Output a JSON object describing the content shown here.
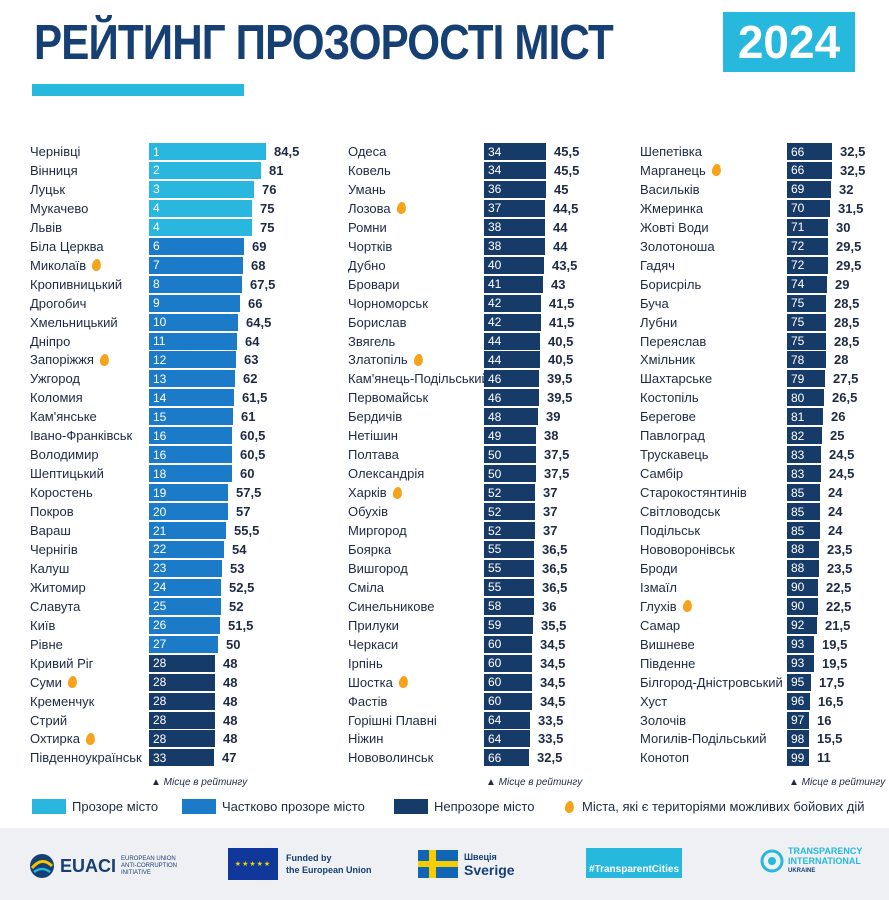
{
  "header": {
    "title": "РЕЙТИНГ ПРОЗОРОСТІ МІСТ",
    "year": "2024"
  },
  "colors": {
    "transparent": "#29b6df",
    "partial": "#1c7bc9",
    "opaque": "#173b68",
    "fire": "#f6a21a",
    "title": "#163f73"
  },
  "chart_data": {
    "type": "bar",
    "title": "РЕЙТИНГ ПРОЗОРОСТІ МІСТ 2024",
    "axis_note": "Місце в рейтингу",
    "categories": [
      "Прозоре місто",
      "Частково прозоре місто",
      "Непрозоре місто"
    ],
    "xlim": [
      0,
      100
    ],
    "rows": [
      {
        "city": "Чернівці",
        "rank": 1,
        "score": "84,5",
        "category": 0,
        "fire": false
      },
      {
        "city": "Вінниця",
        "rank": 2,
        "score": "81",
        "category": 0,
        "fire": false
      },
      {
        "city": "Луцьк",
        "rank": 3,
        "score": "76",
        "category": 0,
        "fire": false
      },
      {
        "city": "Мукачево",
        "rank": 4,
        "score": "75",
        "category": 0,
        "fire": false
      },
      {
        "city": "Львів",
        "rank": 4,
        "score": "75",
        "category": 0,
        "fire": false
      },
      {
        "city": "Біла Церква",
        "rank": 6,
        "score": "69",
        "category": 1,
        "fire": false
      },
      {
        "city": "Миколаїв",
        "rank": 7,
        "score": "68",
        "category": 1,
        "fire": true
      },
      {
        "city": "Кропивницький",
        "rank": 8,
        "score": "67,5",
        "category": 1,
        "fire": false
      },
      {
        "city": "Дрогобич",
        "rank": 9,
        "score": "66",
        "category": 1,
        "fire": false
      },
      {
        "city": "Хмельницький",
        "rank": 10,
        "score": "64,5",
        "category": 1,
        "fire": false
      },
      {
        "city": "Дніпро",
        "rank": 11,
        "score": "64",
        "category": 1,
        "fire": false
      },
      {
        "city": "Запоріжжя",
        "rank": 12,
        "score": "63",
        "category": 1,
        "fire": true
      },
      {
        "city": "Ужгород",
        "rank": 13,
        "score": "62",
        "category": 1,
        "fire": false
      },
      {
        "city": "Коломия",
        "rank": 14,
        "score": "61,5",
        "category": 1,
        "fire": false
      },
      {
        "city": "Кам'янське",
        "rank": 15,
        "score": "61",
        "category": 1,
        "fire": false
      },
      {
        "city": "Івано-Франківськ",
        "rank": 16,
        "score": "60,5",
        "category": 1,
        "fire": false
      },
      {
        "city": "Володимир",
        "rank": 16,
        "score": "60,5",
        "category": 1,
        "fire": false
      },
      {
        "city": "Шептицький",
        "rank": 18,
        "score": "60",
        "category": 1,
        "fire": false
      },
      {
        "city": "Коростень",
        "rank": 19,
        "score": "57,5",
        "category": 1,
        "fire": false
      },
      {
        "city": "Покров",
        "rank": 20,
        "score": "57",
        "category": 1,
        "fire": false
      },
      {
        "city": "Вараш",
        "rank": 21,
        "score": "55,5",
        "category": 1,
        "fire": false
      },
      {
        "city": "Чернігів",
        "rank": 22,
        "score": "54",
        "category": 1,
        "fire": false
      },
      {
        "city": "Калуш",
        "rank": 23,
        "score": "53",
        "category": 1,
        "fire": false
      },
      {
        "city": "Житомир",
        "rank": 24,
        "score": "52,5",
        "category": 1,
        "fire": false
      },
      {
        "city": "Славута",
        "rank": 25,
        "score": "52",
        "category": 1,
        "fire": false
      },
      {
        "city": "Київ",
        "rank": 26,
        "score": "51,5",
        "category": 1,
        "fire": false
      },
      {
        "city": "Рівне",
        "rank": 27,
        "score": "50",
        "category": 1,
        "fire": false
      },
      {
        "city": "Кривий Ріг",
        "rank": 28,
        "score": "48",
        "category": 2,
        "fire": false
      },
      {
        "city": "Суми",
        "rank": 28,
        "score": "48",
        "category": 2,
        "fire": true
      },
      {
        "city": "Кременчук",
        "rank": 28,
        "score": "48",
        "category": 2,
        "fire": false
      },
      {
        "city": "Стрий",
        "rank": 28,
        "score": "48",
        "category": 2,
        "fire": false
      },
      {
        "city": "Охтирка",
        "rank": 28,
        "score": "48",
        "category": 2,
        "fire": true
      },
      {
        "city": "Південноукраїнськ",
        "rank": 33,
        "score": "47",
        "category": 2,
        "fire": false
      },
      {
        "city": "Одеса",
        "rank": 34,
        "score": "45,5",
        "category": 2,
        "fire": false
      },
      {
        "city": "Ковель",
        "rank": 34,
        "score": "45,5",
        "category": 2,
        "fire": false
      },
      {
        "city": "Умань",
        "rank": 36,
        "score": "45",
        "category": 2,
        "fire": false
      },
      {
        "city": "Лозова",
        "rank": 37,
        "score": "44,5",
        "category": 2,
        "fire": true
      },
      {
        "city": "Ромни",
        "rank": 38,
        "score": "44",
        "category": 2,
        "fire": false
      },
      {
        "city": "Чортків",
        "rank": 38,
        "score": "44",
        "category": 2,
        "fire": false
      },
      {
        "city": "Дубно",
        "rank": 40,
        "score": "43,5",
        "category": 2,
        "fire": false
      },
      {
        "city": "Бровари",
        "rank": 41,
        "score": "43",
        "category": 2,
        "fire": false
      },
      {
        "city": "Чорноморськ",
        "rank": 42,
        "score": "41,5",
        "category": 2,
        "fire": false
      },
      {
        "city": "Борислав",
        "rank": 42,
        "score": "41,5",
        "category": 2,
        "fire": false
      },
      {
        "city": "Звягель",
        "rank": 44,
        "score": "40,5",
        "category": 2,
        "fire": false
      },
      {
        "city": "Златопіль",
        "rank": 44,
        "score": "40,5",
        "category": 2,
        "fire": true
      },
      {
        "city": "Кам'янець-Подільський",
        "rank": 46,
        "score": "39,5",
        "category": 2,
        "fire": false
      },
      {
        "city": "Первомайськ",
        "rank": 46,
        "score": "39,5",
        "category": 2,
        "fire": false
      },
      {
        "city": "Бердичів",
        "rank": 48,
        "score": "39",
        "category": 2,
        "fire": false
      },
      {
        "city": "Нетішин",
        "rank": 49,
        "score": "38",
        "category": 2,
        "fire": false
      },
      {
        "city": "Полтава",
        "rank": 50,
        "score": "37,5",
        "category": 2,
        "fire": false
      },
      {
        "city": "Олександрія",
        "rank": 50,
        "score": "37,5",
        "category": 2,
        "fire": false
      },
      {
        "city": "Харків",
        "rank": 52,
        "score": "37",
        "category": 2,
        "fire": true
      },
      {
        "city": "Обухів",
        "rank": 52,
        "score": "37",
        "category": 2,
        "fire": false
      },
      {
        "city": "Миргород",
        "rank": 52,
        "score": "37",
        "category": 2,
        "fire": false
      },
      {
        "city": "Боярка",
        "rank": 55,
        "score": "36,5",
        "category": 2,
        "fire": false
      },
      {
        "city": "Вишгород",
        "rank": 55,
        "score": "36,5",
        "category": 2,
        "fire": false
      },
      {
        "city": "Сміла",
        "rank": 55,
        "score": "36,5",
        "category": 2,
        "fire": false
      },
      {
        "city": "Синельникове",
        "rank": 58,
        "score": "36",
        "category": 2,
        "fire": false
      },
      {
        "city": "Прилуки",
        "rank": 59,
        "score": "35,5",
        "category": 2,
        "fire": false
      },
      {
        "city": "Черкаси",
        "rank": 60,
        "score": "34,5",
        "category": 2,
        "fire": false
      },
      {
        "city": "Ірпінь",
        "rank": 60,
        "score": "34,5",
        "category": 2,
        "fire": false
      },
      {
        "city": "Шостка",
        "rank": 60,
        "score": "34,5",
        "category": 2,
        "fire": true
      },
      {
        "city": "Фастів",
        "rank": 60,
        "score": "34,5",
        "category": 2,
        "fire": false
      },
      {
        "city": "Горішні Плавні",
        "rank": 64,
        "score": "33,5",
        "category": 2,
        "fire": false
      },
      {
        "city": "Ніжин",
        "rank": 64,
        "score": "33,5",
        "category": 2,
        "fire": false
      },
      {
        "city": "Нововолинськ",
        "rank": 66,
        "score": "32,5",
        "category": 2,
        "fire": false
      },
      {
        "city": "Шепетівка",
        "rank": 66,
        "score": "32,5",
        "category": 2,
        "fire": false
      },
      {
        "city": "Марганець",
        "rank": 66,
        "score": "32,5",
        "category": 2,
        "fire": true
      },
      {
        "city": "Васильків",
        "rank": 69,
        "score": "32",
        "category": 2,
        "fire": false
      },
      {
        "city": "Жмеринка",
        "rank": 70,
        "score": "31,5",
        "category": 2,
        "fire": false
      },
      {
        "city": "Жовті Води",
        "rank": 71,
        "score": "30",
        "category": 2,
        "fire": false
      },
      {
        "city": "Золотоноша",
        "rank": 72,
        "score": "29,5",
        "category": 2,
        "fire": false
      },
      {
        "city": "Гадяч",
        "rank": 72,
        "score": "29,5",
        "category": 2,
        "fire": false
      },
      {
        "city": "Борисріль",
        "rank": 74,
        "score": "29",
        "category": 2,
        "fire": false
      },
      {
        "city": "Буча",
        "rank": 75,
        "score": "28,5",
        "category": 2,
        "fire": false
      },
      {
        "city": "Лубни",
        "rank": 75,
        "score": "28,5",
        "category": 2,
        "fire": false
      },
      {
        "city": "Переяслав",
        "rank": 75,
        "score": "28,5",
        "category": 2,
        "fire": false
      },
      {
        "city": "Хмільник",
        "rank": 78,
        "score": "28",
        "category": 2,
        "fire": false
      },
      {
        "city": "Шахтарське",
        "rank": 79,
        "score": "27,5",
        "category": 2,
        "fire": false
      },
      {
        "city": "Костопіль",
        "rank": 80,
        "score": "26,5",
        "category": 2,
        "fire": false
      },
      {
        "city": "Берегове",
        "rank": 81,
        "score": "26",
        "category": 2,
        "fire": false
      },
      {
        "city": "Павлоград",
        "rank": 82,
        "score": "25",
        "category": 2,
        "fire": false
      },
      {
        "city": "Трускавець",
        "rank": 83,
        "score": "24,5",
        "category": 2,
        "fire": false
      },
      {
        "city": "Самбір",
        "rank": 83,
        "score": "24,5",
        "category": 2,
        "fire": false
      },
      {
        "city": "Старокостянтинів",
        "rank": 85,
        "score": "24",
        "category": 2,
        "fire": false
      },
      {
        "city": "Світловодськ",
        "rank": 85,
        "score": "24",
        "category": 2,
        "fire": false
      },
      {
        "city": "Подільськ",
        "rank": 85,
        "score": "24",
        "category": 2,
        "fire": false
      },
      {
        "city": "Нововоронівськ",
        "rank": 88,
        "score": "23,5",
        "category": 2,
        "fire": false
      },
      {
        "city": "Броди",
        "rank": 88,
        "score": "23,5",
        "category": 2,
        "fire": false
      },
      {
        "city": "Ізмаїл",
        "rank": 90,
        "score": "22,5",
        "category": 2,
        "fire": false
      },
      {
        "city": "Глухів",
        "rank": 90,
        "score": "22,5",
        "category": 2,
        "fire": true
      },
      {
        "city": "Самар",
        "rank": 92,
        "score": "21,5",
        "category": 2,
        "fire": false
      },
      {
        "city": "Вишневе",
        "rank": 93,
        "score": "19,5",
        "category": 2,
        "fire": false
      },
      {
        "city": "Південне",
        "rank": 93,
        "score": "19,5",
        "category": 2,
        "fire": false
      },
      {
        "city": "Білгород-Дністровський",
        "rank": 95,
        "score": "17,5",
        "category": 2,
        "fire": false
      },
      {
        "city": "Хуст",
        "rank": 96,
        "score": "16,5",
        "category": 2,
        "fire": false
      },
      {
        "city": "Золочів",
        "rank": 97,
        "score": "16",
        "category": 2,
        "fire": false
      },
      {
        "city": "Могилів-Подільський",
        "rank": 98,
        "score": "15,5",
        "category": 2,
        "fire": false
      },
      {
        "city": "Конотоп",
        "rank": 99,
        "score": "11",
        "category": 2,
        "fire": false
      }
    ]
  },
  "legend": {
    "transparent": "Прозоре місто",
    "partial": "Частково прозоре місто",
    "opaque": "Непрозоре місто",
    "fire": "Міста, які є територіями можливих бойових дій"
  },
  "footer": {
    "euaci": "EUACI",
    "euaci_sub": "EUROPEAN UNION ANTI-CORRUPTION INITIATIVE",
    "eu_line1": "Funded by",
    "eu_line2": "the European Union",
    "sweden_line1": "Швеція",
    "sweden_line2": "Sverige",
    "tc": "#TransparentCities",
    "ti_line1": "TRANSPARENCY",
    "ti_line2": "INTERNATIONAL",
    "ti_line3": "UKRAINE"
  }
}
